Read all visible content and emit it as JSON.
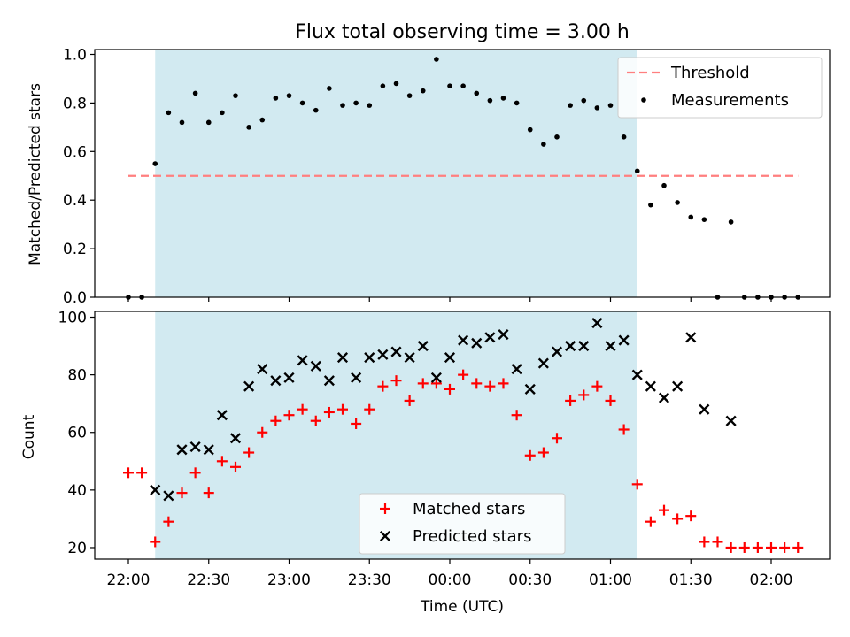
{
  "chart_data": {
    "title": "Flux total observing time = 3.00 h",
    "xlabel": "Time (UTC)",
    "x_ticks": [
      "22:00",
      "22:30",
      "23:00",
      "23:30",
      "00:00",
      "00:30",
      "01:00",
      "01:30",
      "02:00"
    ],
    "shaded_region": {
      "start_min": 10,
      "end_min": 190,
      "color": "#add8e6"
    },
    "colors": {
      "threshold": "#ff7f7f",
      "measurements": "#000000",
      "matched": "#ff0000",
      "predicted": "#000000",
      "shade": "#add8e6"
    },
    "panels": [
      {
        "type": "scatter",
        "ylabel": "Matched/Predicted stars",
        "ylim": [
          0,
          1.02
        ],
        "y_ticks": [
          "0.0",
          "0.2",
          "0.4",
          "0.6",
          "0.8",
          "1.0"
        ],
        "legend_position": "top-right",
        "threshold": {
          "name": "Threshold",
          "value": 0.5,
          "x_range": [
            0,
            250
          ]
        },
        "series": [
          {
            "name": "Measurements",
            "marker": "dot",
            "x": [
              0,
              5,
              10,
              15,
              20,
              25,
              30,
              35,
              40,
              45,
              50,
              55,
              60,
              65,
              70,
              75,
              80,
              85,
              90,
              95,
              100,
              105,
              110,
              115,
              120,
              125,
              130,
              135,
              140,
              145,
              150,
              155,
              160,
              165,
              170,
              175,
              180,
              185,
              190,
              195,
              200,
              205,
              210,
              215,
              220,
              225,
              230,
              235,
              240,
              245,
              250
            ],
            "y": [
              0.0,
              0.0,
              0.55,
              0.76,
              0.72,
              0.84,
              0.72,
              0.76,
              0.83,
              0.7,
              0.73,
              0.82,
              0.83,
              0.8,
              0.77,
              0.86,
              0.79,
              0.8,
              0.79,
              0.87,
              0.88,
              0.83,
              0.85,
              0.98,
              0.87,
              0.87,
              0.84,
              0.81,
              0.82,
              0.8,
              0.69,
              0.63,
              0.66,
              0.79,
              0.81,
              0.78,
              0.79,
              0.66,
              0.52,
              0.38,
              0.46,
              0.39,
              0.33,
              0.32,
              0.0,
              0.31,
              0.0,
              0.0,
              0.0,
              0.0,
              0.0
            ]
          }
        ]
      },
      {
        "type": "scatter",
        "ylabel": "Count",
        "ylim": [
          16,
          102
        ],
        "y_ticks": [
          "20",
          "40",
          "60",
          "80",
          "100"
        ],
        "legend_position": "lower-center",
        "series": [
          {
            "name": "Matched stars",
            "marker": "plus",
            "x": [
              0,
              5,
              10,
              15,
              20,
              25,
              30,
              35,
              40,
              45,
              50,
              55,
              60,
              65,
              70,
              75,
              80,
              85,
              90,
              95,
              100,
              105,
              110,
              115,
              120,
              125,
              130,
              135,
              140,
              145,
              150,
              155,
              160,
              165,
              170,
              175,
              180,
              185,
              190,
              195,
              200,
              205,
              210,
              215,
              220,
              225,
              230,
              235,
              240,
              245,
              250
            ],
            "y": [
              46,
              46,
              22,
              29,
              39,
              46,
              39,
              50,
              48,
              53,
              60,
              64,
              66,
              68,
              64,
              67,
              68,
              63,
              68,
              76,
              78,
              71,
              77,
              77,
              75,
              80,
              77,
              76,
              77,
              66,
              52,
              53,
              58,
              71,
              73,
              76,
              71,
              61,
              42,
              29,
              33,
              30,
              31,
              22,
              22,
              20,
              20,
              20,
              20,
              20,
              20
            ]
          },
          {
            "name": "Predicted stars",
            "marker": "x",
            "x": [
              10,
              15,
              20,
              25,
              30,
              35,
              40,
              45,
              50,
              55,
              60,
              65,
              70,
              75,
              80,
              85,
              90,
              95,
              100,
              105,
              110,
              115,
              120,
              125,
              130,
              135,
              140,
              145,
              150,
              155,
              160,
              165,
              170,
              175,
              180,
              185,
              190,
              195,
              200,
              205,
              210,
              215,
              225
            ],
            "y": [
              40,
              38,
              54,
              55,
              54,
              66,
              58,
              76,
              82,
              78,
              79,
              85,
              83,
              78,
              86,
              79,
              86,
              87,
              88,
              86,
              90,
              79,
              86,
              92,
              91,
              93,
              94,
              82,
              75,
              84,
              88,
              90,
              90,
              98,
              90,
              92,
              80,
              76,
              72,
              76,
              93,
              68,
              64
            ]
          }
        ]
      }
    ]
  }
}
